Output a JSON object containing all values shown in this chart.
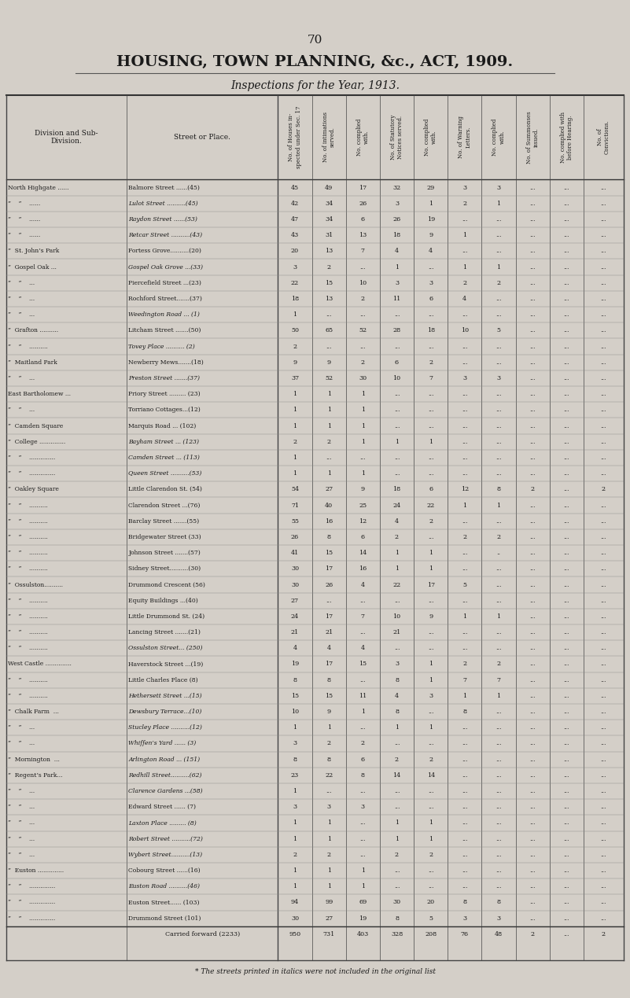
{
  "page_number": "70",
  "title": "HOUSING, TOWN PLANNING, &c., ACT, 1909.",
  "subtitle": "Inspections for the Year, 1913.",
  "bg_color": "#d4cfc8",
  "col_headers": [
    "No. of Houses in-\nspected under Sec. 17",
    "No. of intimations\nserved.",
    "No. complied\nwith.",
    "No. of Statutory\nNotices served.",
    "No. complied\nwith.",
    "No. of Warning\nLetters.",
    "No. complied\nwith.",
    "No. of Summonses\nissued.",
    "No. complied with\nbefore Hearing.",
    "No. of\nConvictions."
  ],
  "rows": [
    [
      "North Highgate ......",
      "Balmore Street ......(45)",
      "45",
      "49",
      "17",
      "32",
      "29",
      "3",
      "3",
      "...",
      "...",
      "..."
    ],
    [
      "”    ”    ......",
      "Lulot Street ..........(45)",
      "42",
      "34",
      "26",
      "3",
      "1",
      "2",
      "1",
      "...",
      "...",
      "..."
    ],
    [
      "”    ”    ......",
      "Raydon Street ......(53)",
      "47",
      "34",
      "6",
      "26",
      "19",
      "...",
      "...",
      "...",
      "...",
      "..."
    ],
    [
      "”    ”    ......",
      "Retcar Street ..........(43)",
      "43",
      "31",
      "13",
      "18",
      "9",
      "1",
      "...",
      "...",
      "...",
      "..."
    ],
    [
      "”  St. John’s Park",
      "Fortess Grove..........(20)",
      "20",
      "13",
      "7",
      "4",
      "4",
      "...",
      "...",
      "...",
      "...",
      "..."
    ],
    [
      "”  Gospel Oak ...",
      "Gospel Oak Grove ...(33)",
      "3",
      "2",
      "...",
      "1",
      "...",
      "1",
      "1",
      "...",
      "...",
      "..."
    ],
    [
      "”    ”    ...",
      "Piercefield Street ...(23)",
      "22",
      "15",
      "10",
      "3",
      "3",
      "2",
      "2",
      "...",
      "...",
      "..."
    ],
    [
      "”    ”    ...",
      "Rochford Street.......(37)",
      "18",
      "13",
      "2",
      "11",
      "6",
      "4",
      "...",
      "...",
      "...",
      "..."
    ],
    [
      "”    ”    ...",
      "Weedington Road ... (1)",
      "1",
      "...",
      "...",
      "...",
      "...",
      "...",
      "...",
      "...",
      "...",
      "..."
    ],
    [
      "”  Grafton ..........",
      "Litcham Street .......(50)",
      "50",
      "65",
      "52",
      "28",
      "18",
      "10",
      "5",
      "...",
      "...",
      "..."
    ],
    [
      "”    ”    ..........",
      "Tovey Place .......... (2)",
      "2",
      "...",
      "...",
      "...",
      "...",
      "...",
      "...",
      "...",
      "...",
      "..."
    ],
    [
      "”  Maitland Park",
      "Newberry Mews.......(18)",
      "9",
      "9",
      "2",
      "6",
      "2",
      "...",
      "...",
      "...",
      "...",
      "..."
    ],
    [
      "”    ”    ...",
      "Preston Street .......(37)",
      "37",
      "52",
      "30",
      "10",
      "7",
      "3",
      "3",
      "...",
      "...",
      "..."
    ],
    [
      "East Bartholomew ...",
      "Priory Street ......... (23)",
      "1",
      "1",
      "1",
      "...",
      "...",
      "...",
      "...",
      "...",
      "...",
      "..."
    ],
    [
      "”    ”    ...",
      "Torriano Cottages...(12)",
      "1",
      "1",
      "1",
      "...",
      "...",
      "...",
      "...",
      "...",
      "...",
      "..."
    ],
    [
      "”  Camden Square",
      "Marquis Road ... (102)",
      "1",
      "1",
      "1",
      "...",
      "...",
      "...",
      "...",
      "...",
      "...",
      "..."
    ],
    [
      "”  College ..............",
      "Bayham Street ... (123)",
      "2",
      "2",
      "1",
      "1",
      "1",
      "...",
      "...",
      "...",
      "...",
      "..."
    ],
    [
      "”    ”    ..............",
      "Camden Street ... (113)",
      "1",
      "...",
      "...",
      "...",
      "...",
      "...",
      "...",
      "...",
      "...",
      "..."
    ],
    [
      "”    ”    ..............",
      "Queen Street ..........(53)",
      "1",
      "1",
      "1",
      "...",
      "...",
      "...",
      "...",
      "...",
      "...",
      "..."
    ],
    [
      "”  Oakley Square",
      "Little Clarendon St. (54)",
      "54",
      "27",
      "9",
      "18",
      "6",
      "12",
      "8",
      "2",
      "...",
      "2"
    ],
    [
      "”    ”    ..........",
      "Clarendon Street ...(76)",
      "71",
      "40",
      "25",
      "24",
      "22",
      "1",
      "1",
      "...",
      "...",
      "..."
    ],
    [
      "”    ”    ..........",
      "Barclay Street .......(55)",
      "55",
      "16",
      "12",
      "4",
      "2",
      "...",
      "...",
      "...",
      "...",
      "..."
    ],
    [
      "”    ”    ..........",
      "Bridgewater Street (33)",
      "26",
      "8",
      "6",
      "2",
      "...",
      "2",
      "2",
      "...",
      "...",
      "..."
    ],
    [
      "”    ”    ..........",
      "Johnson Street .......(57)",
      "41",
      "15",
      "14",
      "1",
      "1",
      "...",
      "..",
      "...",
      "...",
      "..."
    ],
    [
      "”    ”    ..........",
      "Sidney Street..........(30)",
      "30",
      "17",
      "16",
      "1",
      "1",
      "...",
      "...",
      "...",
      "...",
      "..."
    ],
    [
      "”  Ossulston..........",
      "Drummond Crescent (56)",
      "30",
      "26",
      "4",
      "22",
      "17",
      "5",
      "...",
      "...",
      "...",
      "..."
    ],
    [
      "”    ”    ..........",
      "Equity Buildings ...(40)",
      "27",
      "...",
      "...",
      "...",
      "...",
      "...",
      "...",
      "...",
      "...",
      "..."
    ],
    [
      "”    ”    ..........",
      "Little Drummond St. (24)",
      "24",
      "17",
      "7",
      "10",
      "9",
      "1",
      "1",
      "...",
      "...",
      "..."
    ],
    [
      "”    ”    ..........",
      "Lancing Street .......(21)",
      "21",
      "21",
      "...",
      "21",
      "...",
      "...",
      "...",
      "...",
      "...",
      "..."
    ],
    [
      "”    ”    ..........",
      "Ossulston Street... (250)",
      "4",
      "4",
      "4",
      "...",
      "...",
      "...",
      "...",
      "...",
      "...",
      "..."
    ],
    [
      "West Castle ..............",
      "Haverstock Street ...(19)",
      "19",
      "17",
      "15",
      "3",
      "1",
      "2",
      "2",
      "...",
      "...",
      "..."
    ],
    [
      "”    ”    ..........",
      "Little Charles Place (8)",
      "8",
      "8",
      "...",
      "8",
      "1",
      "7",
      "7",
      "...",
      "...",
      "..."
    ],
    [
      "”    ”    ..........",
      "Hethersett Street ...(15)",
      "15",
      "15",
      "11",
      "4",
      "3",
      "1",
      "1",
      "...",
      "...",
      "..."
    ],
    [
      "”  Chalk Farm  ...",
      "Dewsbury Terrace...(10)",
      "10",
      "9",
      "1",
      "8",
      "...",
      "8",
      "...",
      "...",
      "...",
      "..."
    ],
    [
      "”    ”    ...",
      "Stucley Place ..........(12)",
      "1",
      "1",
      "...",
      "1",
      "1",
      "...",
      "...",
      "...",
      "...",
      "..."
    ],
    [
      "”    ”    ...",
      "Whiffen’s Yard ...... (3)",
      "3",
      "2",
      "2",
      "...",
      "...",
      "...",
      "...",
      "...",
      "...",
      "..."
    ],
    [
      "”  Mornington  ...",
      "Arlington Road ... (151)",
      "8",
      "8",
      "6",
      "2",
      "2",
      "...",
      "...",
      "...",
      "...",
      "..."
    ],
    [
      "”  Regent’s Park...",
      "Redhill Street..........(62)",
      "23",
      "22",
      "8",
      "14",
      "14",
      "...",
      "...",
      "...",
      "...",
      "..."
    ],
    [
      "”    ”    ...",
      "Clarence Gardens ...(58)",
      "1",
      "...",
      "...",
      "...",
      "...",
      "...",
      "...",
      "...",
      "...",
      "..."
    ],
    [
      "”    ”    ...",
      "Edward Street ...... (7)",
      "3",
      "3",
      "3",
      "...",
      "...",
      "...",
      "...",
      "...",
      "...",
      "..."
    ],
    [
      "”    ”    ...",
      "Laxton Place ......... (8)",
      "1",
      "1",
      "...",
      "1",
      "1",
      "...",
      "...",
      "...",
      "...",
      "..."
    ],
    [
      "”    ”    ...",
      "Robert Street ..........(72)",
      "1",
      "1",
      "...",
      "1",
      "1",
      "...",
      "...",
      "...",
      "...",
      "..."
    ],
    [
      "”    ”    ...",
      "Wybert Street..........(13)",
      "2",
      "2",
      "...",
      "2",
      "2",
      "...",
      "...",
      "...",
      "...",
      "..."
    ],
    [
      "”  Euston ..............",
      "Cobourg Street ......(16)",
      "1",
      "1",
      "1",
      "...",
      "...",
      "...",
      "...",
      "...",
      "...",
      "..."
    ],
    [
      "”    ”    ..............",
      "Euston Road ..........(46)",
      "1",
      "1",
      "1",
      "...",
      "...",
      "...",
      "...",
      "...",
      "...",
      "..."
    ],
    [
      "”    ”    ..............",
      "Euston Street...... (103)",
      "94",
      "99",
      "69",
      "30",
      "20",
      "8",
      "8",
      "...",
      "...",
      "..."
    ],
    [
      "”    ”    ..............",
      "Drummond Street (101)",
      "30",
      "27",
      "19",
      "8",
      "5",
      "3",
      "3",
      "...",
      "...",
      "..."
    ],
    [
      "",
      "Carried forward (2233)",
      "950",
      "731",
      "403",
      "328",
      "208",
      "76",
      "48",
      "2",
      "...",
      "2"
    ]
  ],
  "italic_rows": [
    1,
    2,
    3,
    5,
    8,
    10,
    12,
    16,
    17,
    18,
    29,
    32,
    33,
    34,
    35,
    36,
    37,
    38,
    40,
    41,
    42,
    44
  ],
  "footnote": "* The streets printed in italics were not included in the original list"
}
